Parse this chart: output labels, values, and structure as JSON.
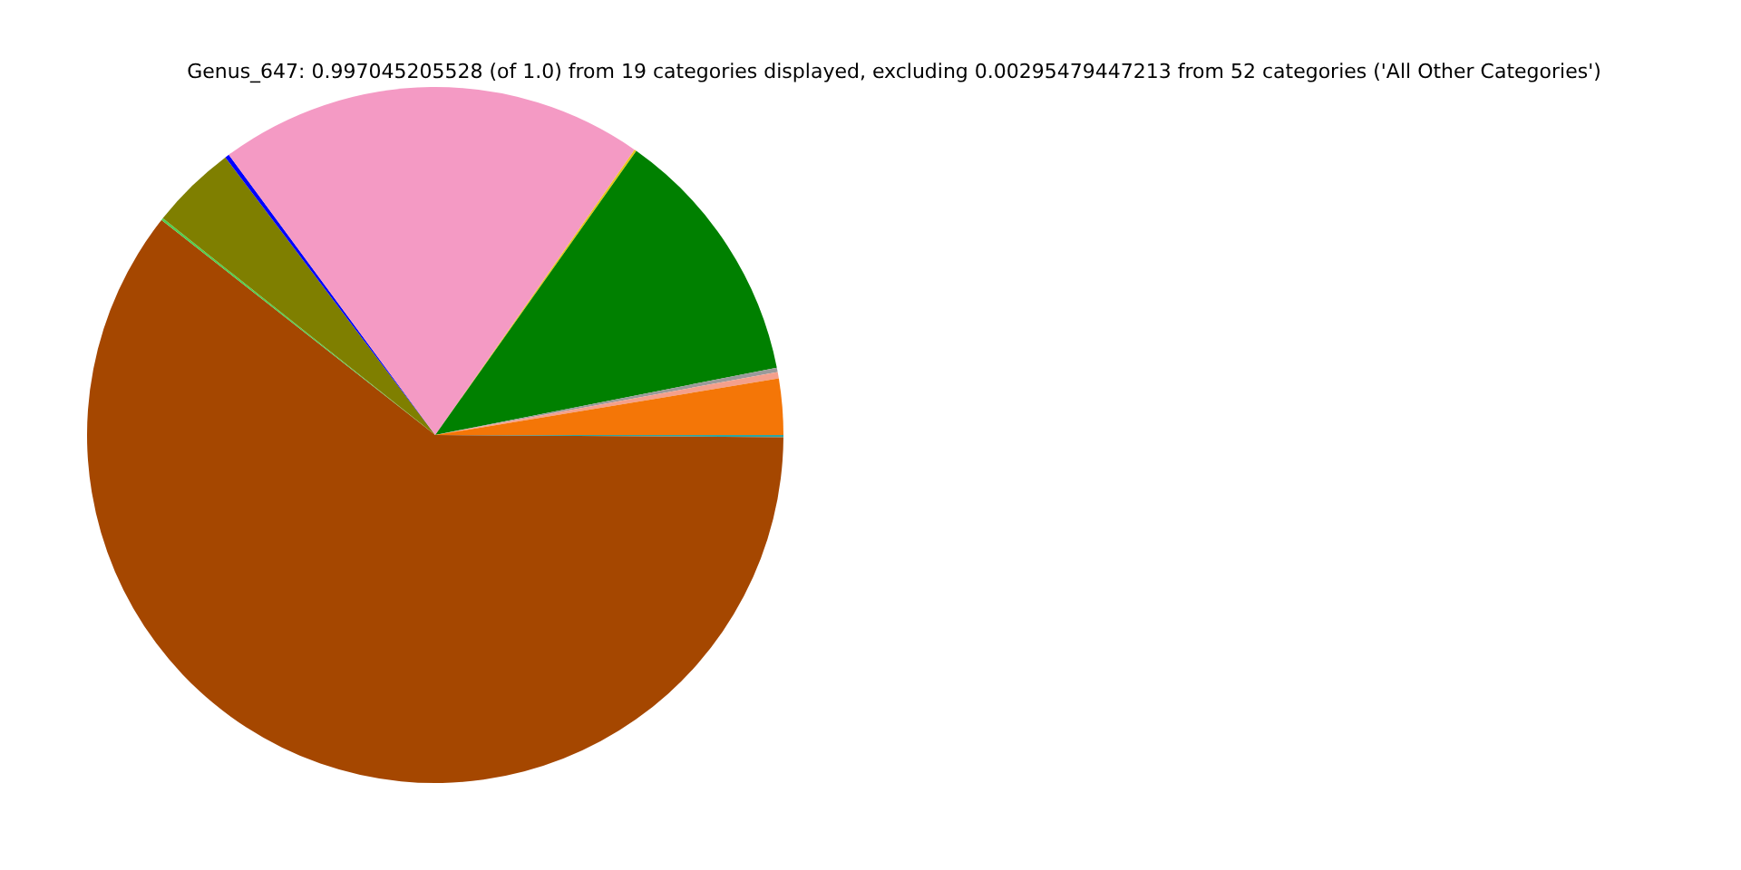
{
  "chart_data": {
    "type": "pie",
    "title": "Genus_647: 0.997045205528 (of 1.0) from 19 categories displayed, excluding 0.00295479447213 from 52 categories ('All Other Categories')",
    "categories": [
      null,
      null,
      null,
      null,
      null,
      null,
      null,
      null,
      null,
      null,
      null
    ],
    "values": [
      0.1,
      60.5,
      0.1,
      4.0,
      0.2,
      19.8,
      0.1,
      12.1,
      0.2,
      0.3,
      2.6
    ],
    "colors": [
      "#2ca6a4",
      "#a54700",
      "#4fd04f",
      "#7f7f00",
      "#0000ff",
      "#f49ac4",
      "#e6c619",
      "#008000",
      "#9a9a9a",
      "#f4a08c",
      "#f47607"
    ],
    "legend": false
  }
}
